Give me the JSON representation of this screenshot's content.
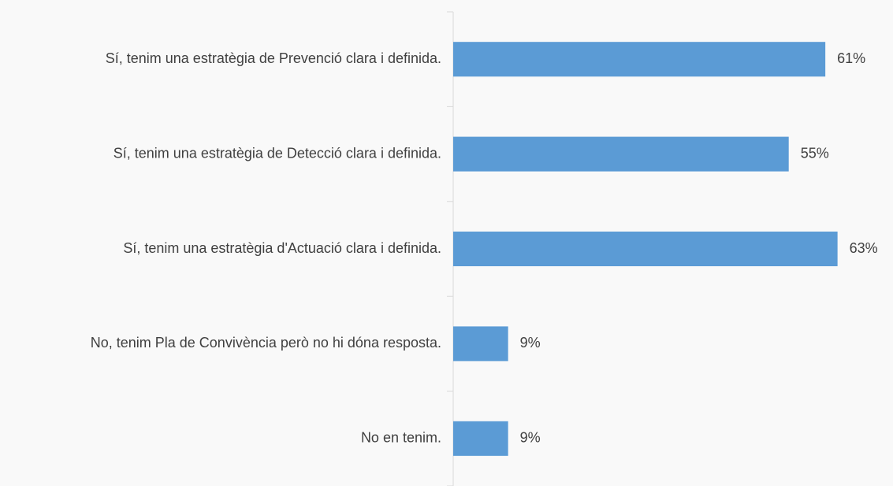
{
  "chart_data": {
    "type": "barh",
    "categories": [
      "Sí, tenim una estratègia de Prevenció clara i definida.",
      "Sí, tenim una estratègia de Detecció clara i definida.",
      "Sí, tenim una estratègia d'Actuació clara i definida.",
      "No, tenim Pla de Convivència però no hi dóna resposta.",
      "No en tenim."
    ],
    "values": [
      61,
      55,
      63,
      9,
      9
    ],
    "value_labels": [
      "61%",
      "55%",
      "63%",
      "9%",
      "9%"
    ],
    "color": "#5b9bd5"
  }
}
